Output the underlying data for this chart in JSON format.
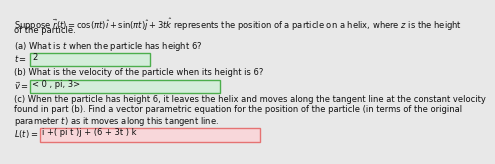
{
  "title_line1": "Suppose $\\vec{r}(t) = \\cos(\\pi t)\\hat{\\imath} + \\sin(\\pi t)\\hat{\\jmath} + 3t\\hat{k}$ represents the position of a particle on a helix, where $z$ is the height",
  "title_line2": "of the particle.",
  "part_a_label": "(a) What is $t$ when the particle has height 6?",
  "part_a_prefix": "$t =$",
  "part_a_answer": "2",
  "part_b_label": "(b) What is the velocity of the particle when its height is 6?",
  "part_b_prefix": "$\\vec{v} =$",
  "part_b_answer": "< 0 , pi, 3>",
  "part_c_label1": "(c) When the particle has height 6, it leaves the helix and moves along the tangent line at the constant velocity",
  "part_c_label2": "found in part (b). Find a vector parametric equation for the position of the particle (in terms of the original",
  "part_c_label3": "parameter $t$) as it moves along this tangent line.",
  "part_c_prefix": "$L(t) =$",
  "part_c_answer": "i +( pi t )j + (6 + 3t ) k",
  "bg_color": "#e8e8e8",
  "box_a_color": "#d4edda",
  "box_b_color": "#d4edda",
  "box_c_color": "#f8d7da",
  "box_a_edge": "#4cae4c",
  "box_b_edge": "#4cae4c",
  "box_c_edge": "#e57373",
  "text_color": "#111111",
  "fontsize": 6.0
}
